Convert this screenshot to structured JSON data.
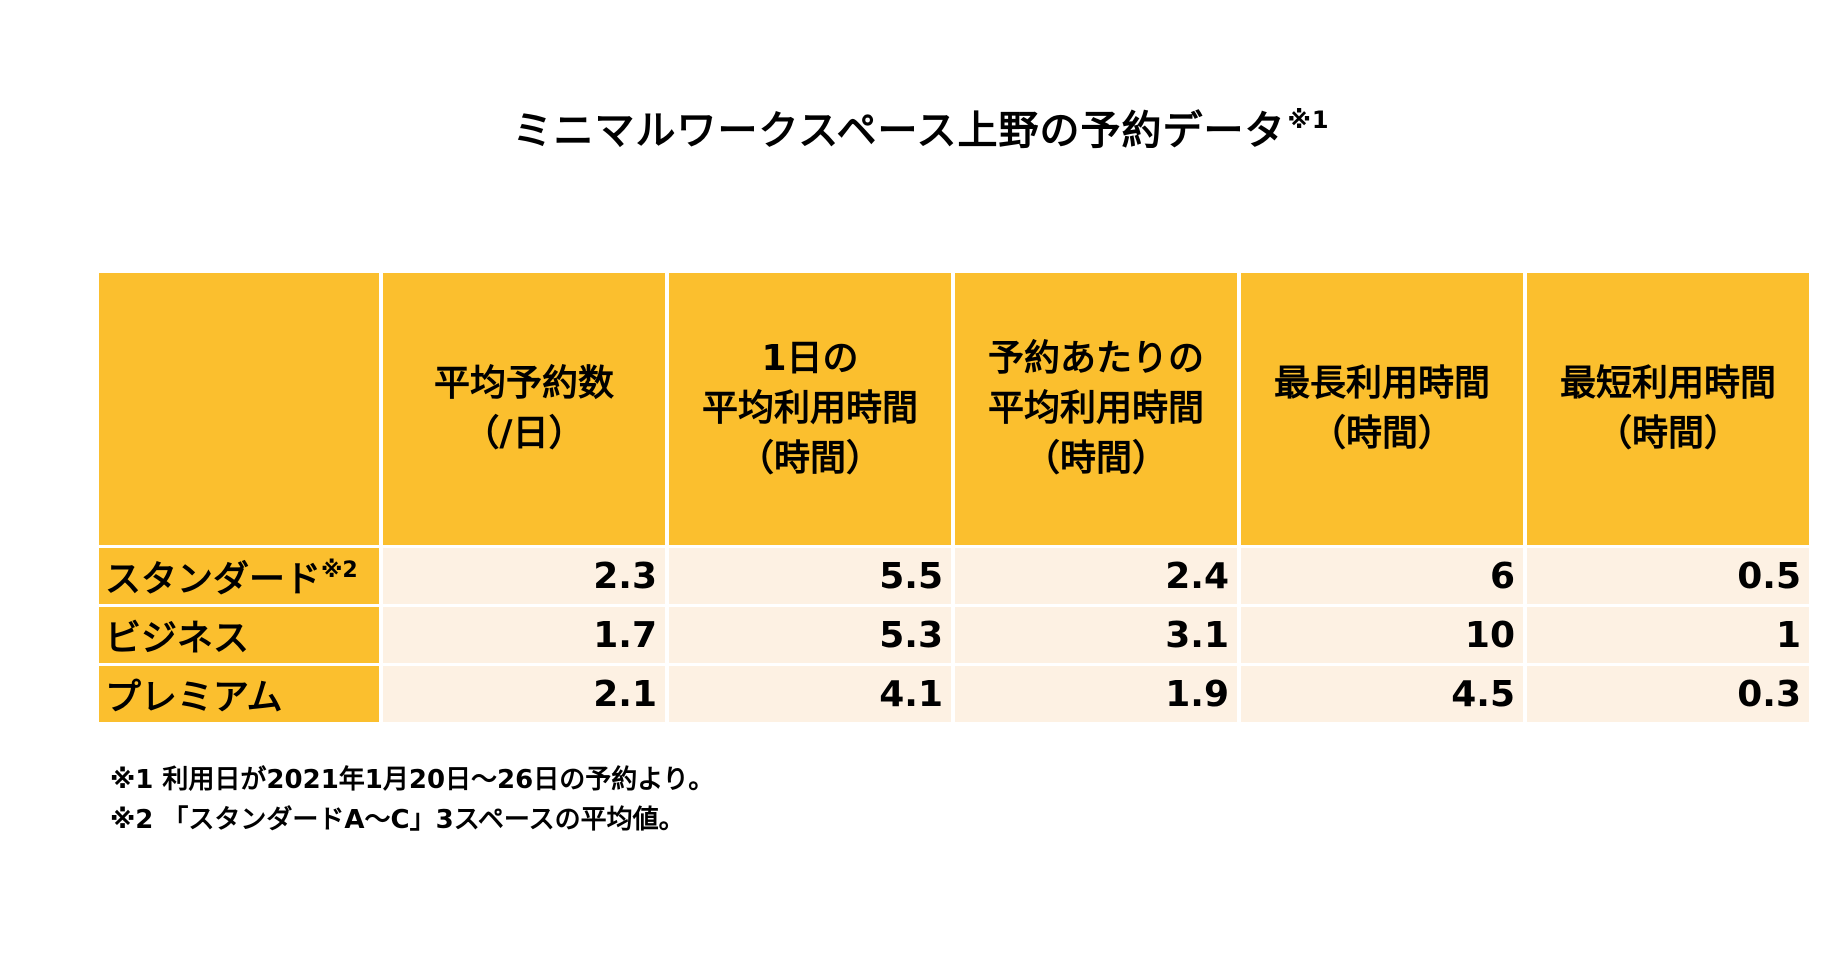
{
  "title": {
    "text": "ミニマルワークスペース上野の予約データ",
    "note_mark": "※1"
  },
  "chart_data": {
    "type": "table",
    "columns": [
      {
        "lines": [
          "平均予約数",
          "（/日）"
        ]
      },
      {
        "lines": [
          "1日の",
          "平均利用時間",
          "（時間）"
        ]
      },
      {
        "lines": [
          "予約あたりの",
          "平均利用時間",
          "（時間）"
        ]
      },
      {
        "lines": [
          "最長利用時間",
          "（時間）"
        ]
      },
      {
        "lines": [
          "最短利用時間",
          "（時間）"
        ]
      }
    ],
    "rows": [
      {
        "label": "スタンダード",
        "note_mark": "※2",
        "values": [
          "2.3",
          "5.5",
          "2.4",
          "6",
          "0.5"
        ]
      },
      {
        "label": "ビジネス",
        "note_mark": "",
        "values": [
          "1.7",
          "5.3",
          "3.1",
          "10",
          "1"
        ]
      },
      {
        "label": "プレミアム",
        "note_mark": "",
        "values": [
          "2.1",
          "4.1",
          "1.9",
          "4.5",
          "0.3"
        ]
      }
    ]
  },
  "notes": [
    "※1 利用日が2021年1月20日～26日の予約より。",
    "※2 「スタンダードA～C」3スペースの平均値。"
  ],
  "colors": {
    "header_bg": "#fbbf2e",
    "cell_bg": "#fdf1e3"
  }
}
